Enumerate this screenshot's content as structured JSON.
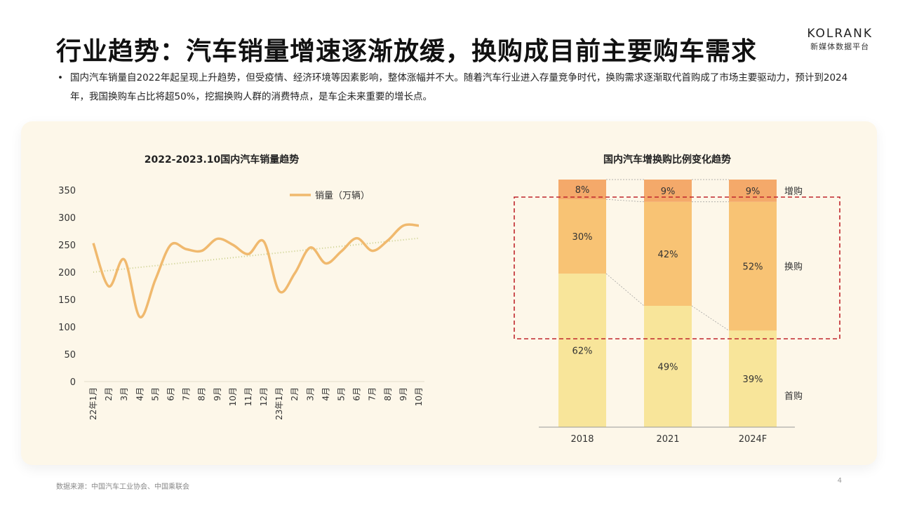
{
  "header": {
    "title": "行业趋势：汽车销量增速逐渐放缓，换购成目前主要购车需求",
    "logo_name": "KOLRANK",
    "logo_sub": "新媒体数据平台"
  },
  "bullet": "国内汽车销量自2022年起呈现上升趋势，但受疫情、经济环境等因素影响，整体涨幅并不大。随着汽车行业进入存量竞争时代，换购需求逐渐取代首购成了市场主要驱动力，预计到2024年，我国换购车占比将超50%，挖掘换购人群的消费特点，是车企未来重要的增长点。",
  "footer": {
    "source": "数据来源：中国汽车工业协会、中国乘联会",
    "page": "4"
  },
  "colors": {
    "line": "#f0b96e",
    "trend": "#c9cf8a",
    "first": "#f8e59a",
    "replace": "#f8c374",
    "add": "#f4a96a",
    "box": "#c0272d"
  },
  "chart_data": [
    {
      "type": "line",
      "title": "2022-2023.10国内汽车销量趋势",
      "legend": "销量（万辆）",
      "legend_position": "top-right",
      "ylim": [
        0,
        350
      ],
      "yticks": [
        0,
        50,
        100,
        150,
        200,
        250,
        300,
        350
      ],
      "categories": [
        "22年1月",
        "2月",
        "3月",
        "4月",
        "5月",
        "6月",
        "7月",
        "8月",
        "9月",
        "10月",
        "11月",
        "12月",
        "23年1月",
        "2月",
        "3月",
        "4月",
        "5月",
        "6月",
        "7月",
        "8月",
        "9月",
        "10月"
      ],
      "values": [
        253,
        174,
        223,
        118,
        186,
        250,
        242,
        239,
        261,
        250,
        233,
        256,
        165,
        198,
        245,
        216,
        238,
        262,
        239,
        258,
        285,
        285
      ],
      "trendline": [
        200,
        262
      ]
    },
    {
      "type": "bar",
      "stacked": true,
      "title": "国内汽车增换购比例变化趋势",
      "categories": [
        "2018",
        "2021",
        "2024F"
      ],
      "series": [
        {
          "name": "首购",
          "values": [
            62,
            49,
            39
          ]
        },
        {
          "name": "换购",
          "values": [
            30,
            42,
            52
          ]
        },
        {
          "name": "增购",
          "values": [
            8,
            9,
            9
          ]
        }
      ]
    }
  ]
}
